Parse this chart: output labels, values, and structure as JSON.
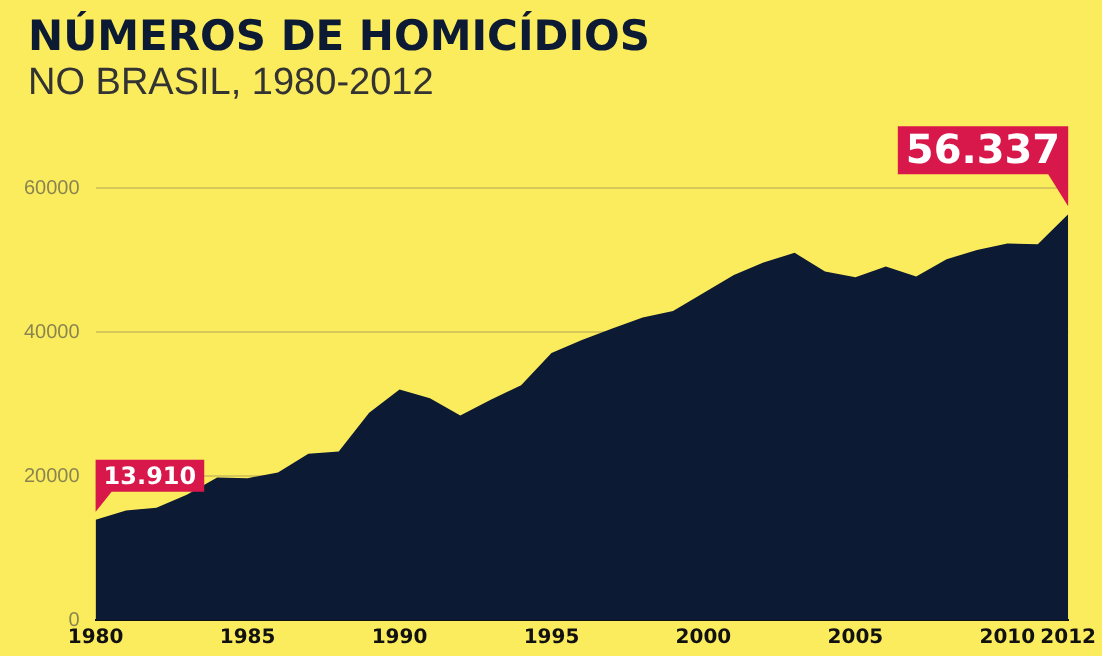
{
  "chart_data": {
    "type": "area",
    "title": "NÚMEROS DE HOMICÍDIOS",
    "subtitle": "NO BRASIL, 1980-2012",
    "x": [
      1980,
      1981,
      1982,
      1983,
      1984,
      1985,
      1986,
      1987,
      1988,
      1989,
      1990,
      1991,
      1992,
      1993,
      1994,
      1995,
      1996,
      1997,
      1998,
      1999,
      2000,
      2001,
      2002,
      2003,
      2004,
      2005,
      2006,
      2007,
      2008,
      2009,
      2010,
      2011,
      2012
    ],
    "series": [
      {
        "color": "#0c1a33",
        "values": [
          13910,
          15200,
          15600,
          17400,
          19800,
          19700,
          20500,
          23100,
          23400,
          28800,
          32000,
          30800,
          28400,
          30600,
          32600,
          37100,
          38900,
          40500,
          42000,
          42900,
          45400,
          47900,
          49700,
          51000,
          48400,
          47600,
          49100,
          47700,
          50100,
          51400,
          52300,
          52200,
          56337
        ],
        "value_labels": [
          "13.910",
          null,
          null,
          null,
          null,
          null,
          null,
          null,
          null,
          null,
          null,
          null,
          null,
          null,
          null,
          null,
          null,
          null,
          null,
          null,
          null,
          null,
          null,
          null,
          null,
          null,
          null,
          null,
          null,
          null,
          null,
          null,
          "56.337"
        ]
      }
    ],
    "xlim": [
      1980,
      2012
    ],
    "xticks": [
      1980,
      1985,
      1990,
      1995,
      2000,
      2005,
      2010,
      2012
    ],
    "ylim": [
      0,
      60000
    ],
    "yticks": [
      0,
      20000,
      40000,
      60000
    ],
    "grid": "y",
    "legend": false,
    "marker": "none"
  }
}
